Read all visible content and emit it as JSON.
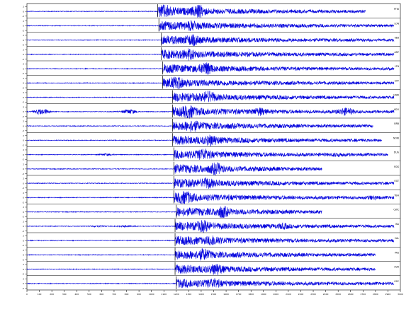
{
  "chart_data": {
    "type": "line",
    "title": "",
    "xlabel": "",
    "ylabel": "",
    "xlim": [
      0,
      3000
    ],
    "grid": false,
    "trace_color": "#0000dd",
    "pick_color": "#000000",
    "x_ticks": [
      0,
      100,
      200,
      300,
      400,
      500,
      600,
      700,
      800,
      900,
      1000,
      1100,
      1200,
      1300,
      1400,
      1500,
      1600,
      1700,
      1800,
      1900,
      2000,
      2100,
      2200,
      2300,
      2400,
      2500,
      2600,
      2700,
      2800,
      2900,
      3000
    ],
    "x_tick_labels": [
      "0",
      "100",
      "200",
      "300",
      "400",
      "500",
      "600",
      "700",
      "800",
      "900",
      "1000",
      "1100",
      "1200",
      "1300",
      "1400",
      "1500",
      "1600",
      "1700",
      "1800",
      "1900",
      "2000",
      "2100",
      "2200",
      "2300",
      "2400",
      "2500",
      "2600",
      "2700",
      "2800",
      "2900",
      "3000"
    ],
    "y_tick_labels": [
      "2",
      "0",
      "-2"
    ],
    "stations": [
      {
        "name": "PTW",
        "onset": 1050,
        "end": 2720,
        "peaks": [
          {
            "t": 1380,
            "a": 0.55
          },
          {
            "t": 1110,
            "a": 0.45
          }
        ]
      },
      {
        "name": "LON",
        "onset": 1060,
        "end": 2950,
        "peaks": [
          {
            "t": 1330,
            "a": 0.3
          }
        ]
      },
      {
        "name": "KEB",
        "onset": 1080,
        "end": 2950,
        "peaks": [
          {
            "t": 1330,
            "a": 0.35
          }
        ]
      },
      {
        "name": "ANT",
        "onset": 1080,
        "end": 2950,
        "peaks": [
          {
            "t": 1300,
            "a": 0.35
          }
        ]
      },
      {
        "name": "LTN",
        "onset": 1090,
        "end": 2950,
        "peaks": [
          {
            "t": 1440,
            "a": 0.6
          }
        ]
      },
      {
        "name": "EVT",
        "onset": 1090,
        "end": 2950,
        "peaks": [
          {
            "t": 1200,
            "a": 0.35
          }
        ]
      },
      {
        "name": "HNW",
        "onset": 1170,
        "end": 2950,
        "peaks": [
          {
            "t": 1460,
            "a": 0.5
          }
        ]
      },
      {
        "name": "ADO",
        "onset": 1170,
        "end": 2950,
        "peaks": [
          {
            "t": 1300,
            "a": 0.45
          },
          {
            "t": 1870,
            "a": 0.3
          }
        ],
        "pre": [
          {
            "t": 120,
            "a": 0.4
          },
          {
            "t": 820,
            "a": 0.3
          },
          {
            "t": 2560,
            "a": 0.35
          }
        ]
      },
      {
        "name": "BRB",
        "onset": 1170,
        "end": 2780,
        "peaks": [
          {
            "t": 1330,
            "a": 0.35
          }
        ]
      },
      {
        "name": "NOW",
        "onset": 1170,
        "end": 2850,
        "peaks": [
          {
            "t": 1480,
            "a": 0.4
          }
        ]
      },
      {
        "name": "DUG",
        "onset": 1180,
        "end": 2900,
        "peaks": [
          {
            "t": 1420,
            "a": 0.4
          }
        ],
        "pre": [
          {
            "t": 640,
            "a": 0.12
          },
          {
            "t": 2500,
            "a": 0.1
          }
        ]
      },
      {
        "name": "RDS",
        "onset": 1180,
        "end": 2370,
        "peaks": [
          {
            "t": 1520,
            "a": 0.5
          }
        ]
      },
      {
        "name": "OGT",
        "onset": 1180,
        "end": 2950,
        "peaks": [
          {
            "t": 1450,
            "a": 0.35
          }
        ]
      },
      {
        "name": "YBH",
        "onset": 1180,
        "end": 2950,
        "peaks": [
          {
            "t": 1270,
            "a": 0.45
          },
          {
            "t": 2780,
            "a": 0.15
          }
        ]
      },
      {
        "name": "CWC",
        "onset": 1200,
        "end": 2370,
        "peaks": [
          {
            "t": 1570,
            "a": 0.5
          }
        ]
      },
      {
        "name": "ISA",
        "onset": 1190,
        "end": 2950,
        "peaks": [
          {
            "t": 1420,
            "a": 0.4
          },
          {
            "t": 2060,
            "a": 0.2
          }
        ],
        "pre": [
          {
            "t": 560,
            "a": 0.08
          },
          {
            "t": 800,
            "a": 0.1
          }
        ]
      },
      {
        "name": "CAL",
        "onset": 1190,
        "end": 2950,
        "peaks": [
          {
            "t": 1500,
            "a": 0.35
          }
        ]
      },
      {
        "name": "PAS",
        "onset": 1190,
        "end": 2800,
        "peaks": [
          {
            "t": 1420,
            "a": 0.4
          }
        ]
      },
      {
        "name": "SVD",
        "onset": 1190,
        "end": 2800,
        "peaks": [
          {
            "t": 1520,
            "a": 0.45
          }
        ]
      },
      {
        "name": "GSC",
        "onset": 1200,
        "end": 2950,
        "peaks": [
          {
            "t": 1500,
            "a": 0.3
          }
        ]
      }
    ]
  }
}
